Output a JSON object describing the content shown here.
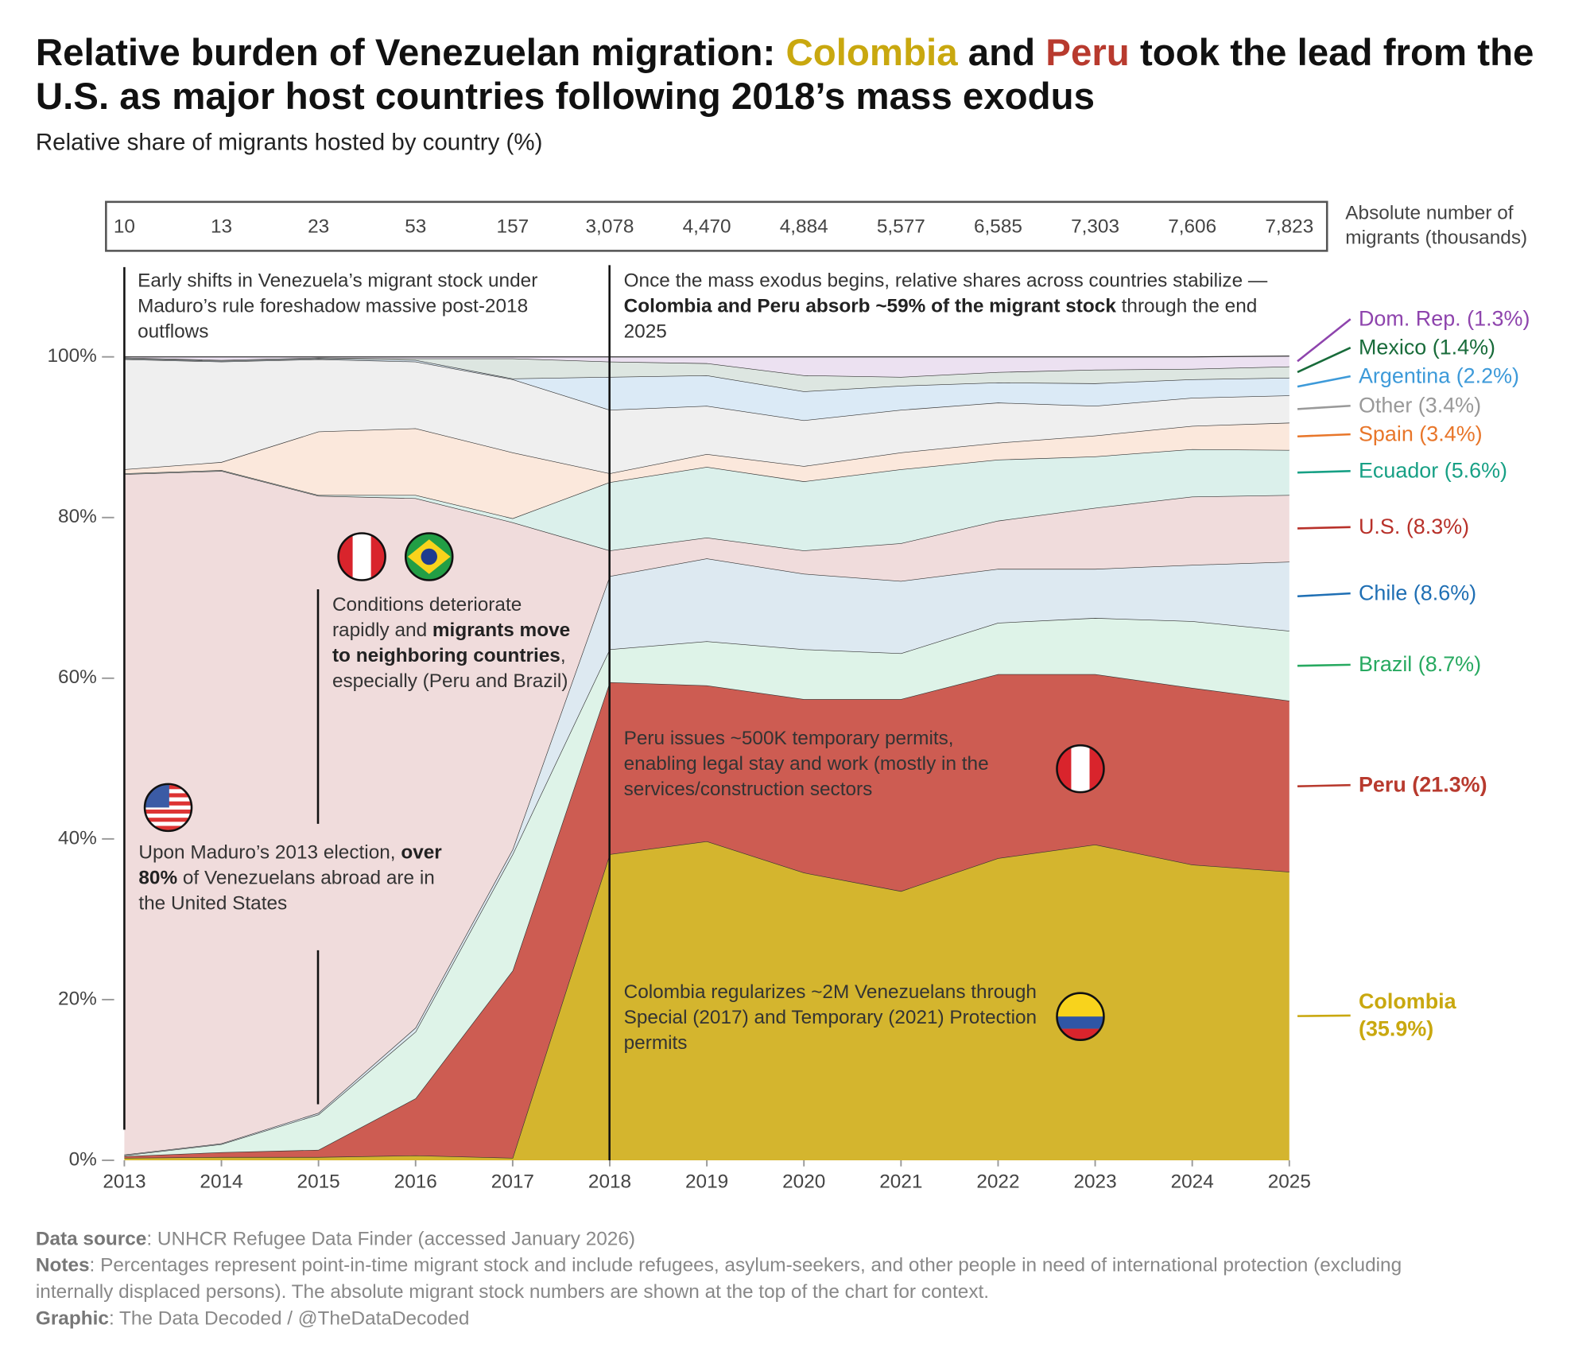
{
  "chart_data": {
    "type": "stacked-area",
    "title": [
      "Relative burden of Venezuelan migration: ",
      "Colombia",
      " and ",
      "Peru",
      " took the lead from the U.S. as major host countries following 2018’s mass exodus"
    ],
    "subtitle": "Relative share of migrants hosted by country (%)",
    "x": [
      2013,
      2014,
      2015,
      2016,
      2017,
      2018,
      2019,
      2020,
      2021,
      2022,
      2023,
      2024,
      2025
    ],
    "xlim": [
      2013,
      2025
    ],
    "xticks": [
      2013,
      2014,
      2015,
      2016,
      2017,
      2018,
      2019,
      2020,
      2021,
      2022,
      2023,
      2024,
      2025
    ],
    "ylim": [
      0,
      100
    ],
    "yticks": [
      {
        "value": 0,
        "label": "0%"
      },
      {
        "value": 20,
        "label": "20%"
      },
      {
        "value": 40,
        "label": "40%"
      },
      {
        "value": 60,
        "label": "60%"
      },
      {
        "value": 80,
        "label": "80%"
      },
      {
        "value": 100,
        "label": "100%"
      }
    ],
    "series": [
      {
        "name": "Colombia (35.9%)",
        "color": "#d4b52e",
        "line_color": "#c9a80f",
        "bold": true,
        "values": [
          0.3,
          0.4,
          0.4,
          0.6,
          0.3,
          38.1,
          39.7,
          35.8,
          33.5,
          37.6,
          39.3,
          36.8,
          35.9
        ]
      },
      {
        "name": "Peru (21.3%)",
        "color": "#cd5c52",
        "line_color": "#b83a2e",
        "bold": true,
        "values": [
          0.2,
          0.6,
          0.9,
          7.1,
          23.3,
          21.4,
          19.4,
          21.6,
          23.9,
          22.9,
          21.2,
          22.0,
          21.3
        ]
      },
      {
        "name": "Brazil (8.7%)",
        "color": "#def3e8",
        "line_color": "#27a960",
        "values": [
          0.1,
          1.0,
          4.4,
          8.3,
          14.5,
          4.1,
          5.5,
          6.2,
          5.7,
          6.4,
          7.0,
          8.3,
          8.7
        ]
      },
      {
        "name": "Chile (8.6%)",
        "color": "#dde9f1",
        "line_color": "#1f6fb4",
        "values": [
          0.1,
          0.1,
          0.2,
          0.5,
          0.6,
          9.1,
          10.3,
          9.4,
          9.0,
          6.7,
          6.1,
          7.0,
          8.6
        ]
      },
      {
        "name": "U.S. (8.3%)",
        "color": "#f0dcdc",
        "line_color": "#b8312a",
        "values": [
          84.7,
          83.7,
          76.8,
          65.9,
          40.7,
          3.2,
          2.6,
          2.9,
          4.7,
          6.0,
          7.6,
          8.5,
          8.3
        ]
      },
      {
        "name": "Ecuador (5.6%)",
        "color": "#dbf0eb",
        "line_color": "#17a085",
        "values": [
          0.1,
          0.1,
          0.1,
          0.4,
          0.5,
          8.5,
          8.8,
          8.6,
          9.2,
          7.6,
          6.4,
          5.9,
          5.6
        ]
      },
      {
        "name": "Spain (3.4%)",
        "color": "#fbe8dc",
        "line_color": "#e8762a",
        "values": [
          0.5,
          1.0,
          7.9,
          8.3,
          8.2,
          1.1,
          1.6,
          1.9,
          2.1,
          2.1,
          2.6,
          2.9,
          3.4
        ]
      },
      {
        "name": "Other (3.4%)",
        "color": "#efefef",
        "line_color": "#999999",
        "values": [
          13.7,
          12.5,
          9.0,
          8.3,
          9.1,
          7.9,
          6.0,
          5.7,
          5.3,
          5.0,
          3.7,
          3.5,
          3.4
        ]
      },
      {
        "name": "Argentina (2.2%)",
        "color": "#dbeaf6",
        "line_color": "#3d9ad9",
        "values": [
          0.1,
          0.1,
          0.1,
          0.2,
          0.1,
          4.1,
          3.8,
          3.6,
          3.0,
          2.5,
          2.8,
          2.3,
          2.2
        ]
      },
      {
        "name": "Mexico (1.4%)",
        "color": "#dde6e1",
        "line_color": "#186b3a",
        "values": [
          0.1,
          0.1,
          0.1,
          0.2,
          2.5,
          1.9,
          1.5,
          2.0,
          1.1,
          1.3,
          1.7,
          1.3,
          1.4
        ]
      },
      {
        "name": "Dom. Rep. (1.3%)",
        "color": "#ece1f1",
        "line_color": "#8e44ad",
        "values": [
          0.1,
          0.4,
          0.1,
          0.2,
          0.2,
          0.6,
          0.8,
          2.3,
          2.5,
          1.9,
          1.6,
          1.5,
          1.3
        ]
      }
    ],
    "absolute": {
      "label": "Absolute number of migrants (thousands)",
      "values": [
        10,
        13,
        23,
        53,
        157,
        3078,
        4470,
        4884,
        5577,
        6585,
        7303,
        7606,
        7823
      ],
      "value_labels": [
        "10",
        "13",
        "23",
        "53",
        "157",
        "3,078",
        "4,470",
        "4,884",
        "5,577",
        "6,585",
        "7,303",
        "7,606",
        "7,823"
      ]
    },
    "annotations": [
      [
        "Early shifts in Venezuela’s migrant stock under Maduro’s rule foreshadow massive post-2018 outflows"
      ],
      [
        "Once the mass exodus begins, relative shares across countries stabilize — ",
        "Colombia and Peru absorb ~59% of the migrant stock",
        " through the end 2025"
      ],
      [
        "Conditions deteriorate rapidly and ",
        "migrants move to neighboring countries",
        ", especially (Peru and Brazil)"
      ],
      [
        "Upon Maduro’s 2013 election, ",
        "over 80%",
        " of Venezuelans abroad are in the United States"
      ],
      [
        "Peru issues ~500K temporary permits, enabling legal stay and work (mostly in the services/construction sectors"
      ],
      [
        "Colombia regularizes ~2M Venezuelans through Special (2017) and Temporary (2021) Protection permits"
      ]
    ],
    "footer": [
      [
        "Data source",
        ": UNHCR Refugee Data Finder (accessed January 2026)"
      ],
      [
        "Notes",
        ": Percentages represent point-in-time migrant stock and include refugees, asylum-seekers, and other people in need of international protection (excluding internally displaced persons). The absolute migrant stock numbers are shown at the top of the chart for context."
      ],
      [
        "Graphic",
        ": The Data Decoded / @TheDataDecoded"
      ]
    ]
  }
}
